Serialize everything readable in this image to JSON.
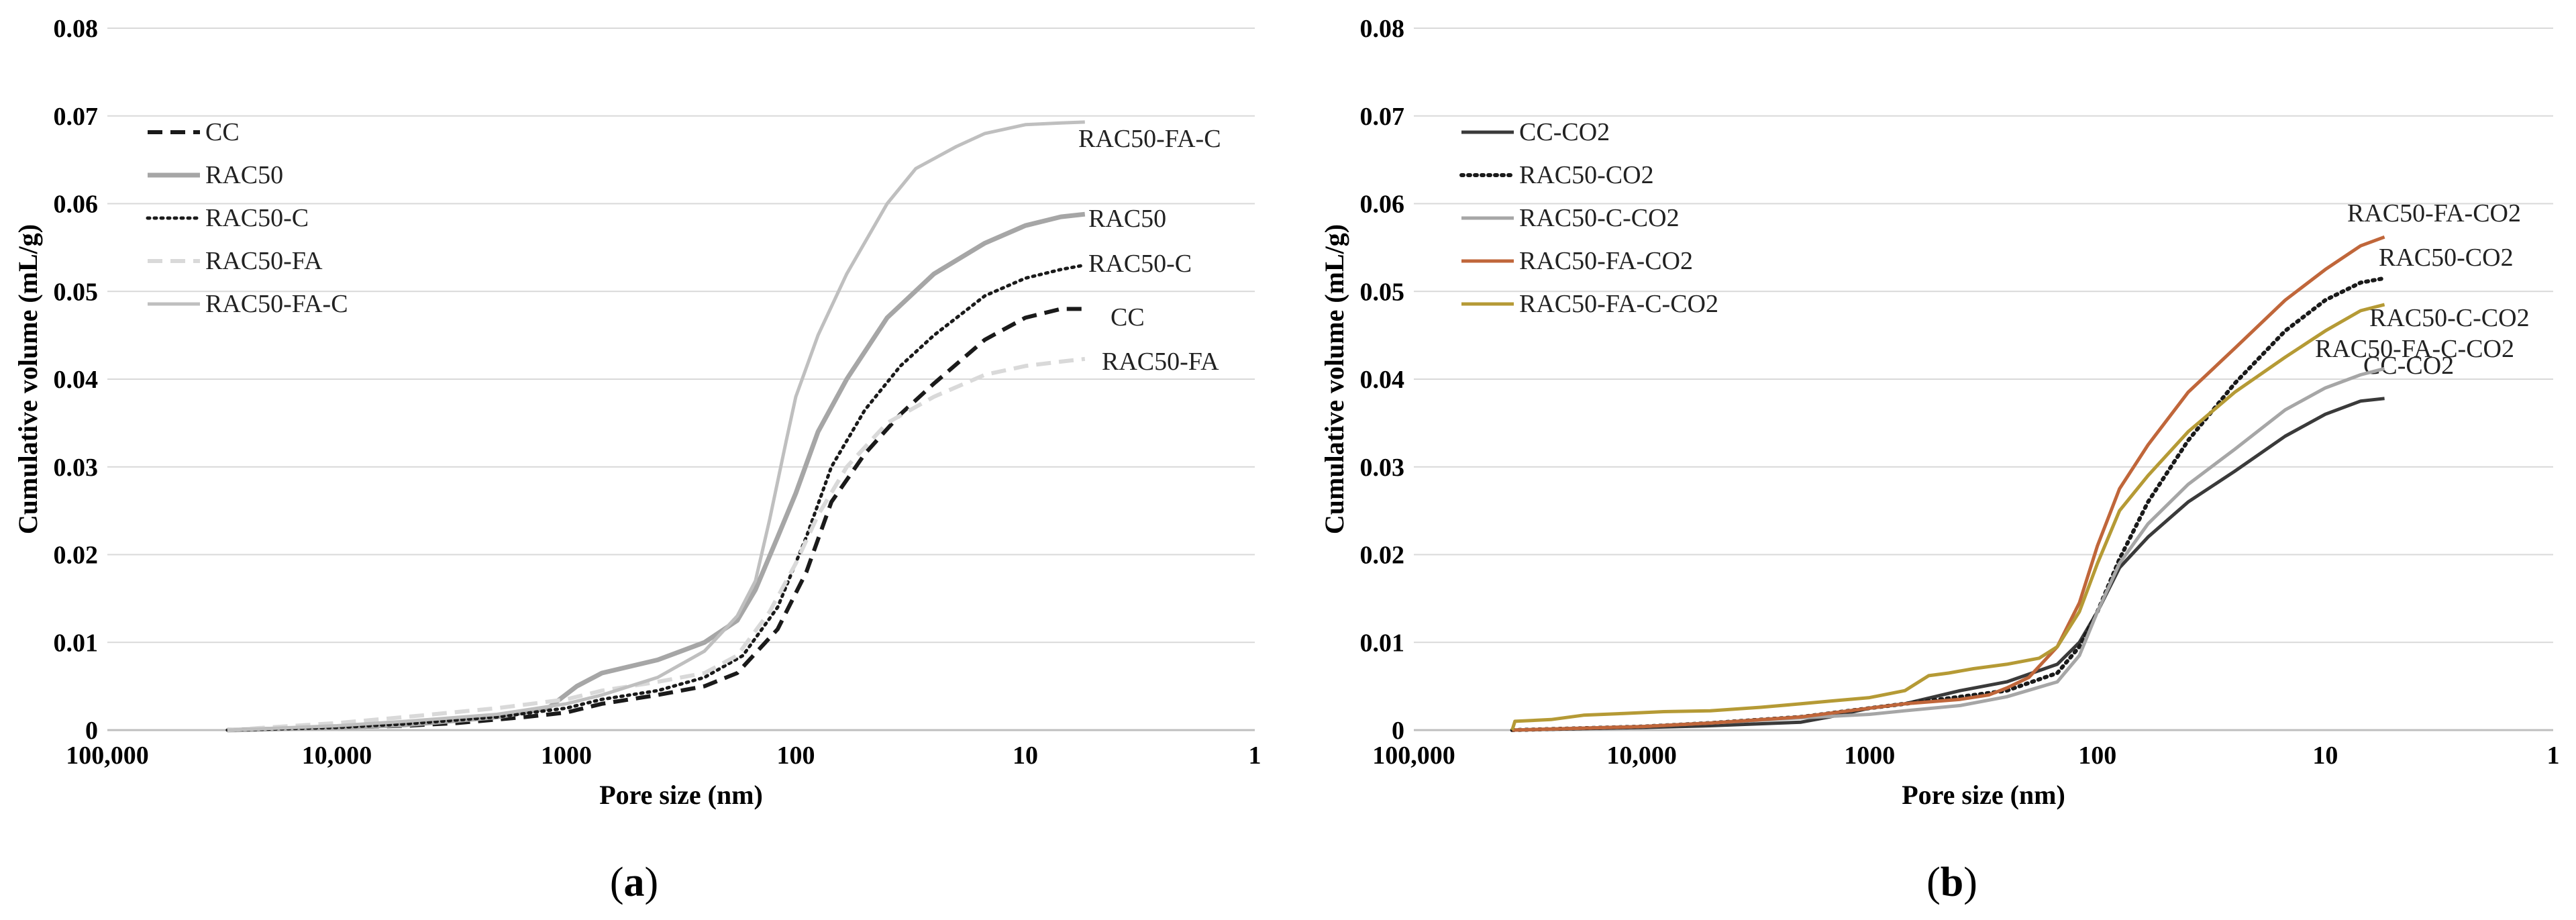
{
  "chart_data": [
    {
      "type": "line",
      "panel": "a",
      "caption": {
        "open": "(",
        "letter": "a",
        "close": ")"
      },
      "xlabel": "Pore size (nm)",
      "ylabel": "Cumulative volume (mL/g)",
      "x_scale": "log",
      "x_reversed": true,
      "xlim": [
        100000,
        1
      ],
      "ylim": [
        0,
        0.08
      ],
      "x_ticks": [
        100000,
        10000,
        1000,
        100,
        10,
        1
      ],
      "x_tick_labels": [
        "100,000",
        "10,000",
        "1000",
        "100",
        "10",
        "1"
      ],
      "y_ticks": [
        0,
        0.01,
        0.02,
        0.03,
        0.04,
        0.05,
        0.06,
        0.07,
        0.08
      ],
      "y_tick_labels": [
        "0",
        "0.01",
        "0.02",
        "0.03",
        "0.04",
        "0.05",
        "0.06",
        "0.07",
        "0.08"
      ],
      "legend_position": "top-left",
      "series": [
        {
          "name": "CC",
          "end_label": "CC",
          "color": "#1a1a1a",
          "dash": "dashed",
          "width": 6,
          "x": [
            30000,
            10000,
            5000,
            3000,
            1500,
            1000,
            700,
            400,
            250,
            180,
            120,
            90,
            70,
            50,
            35,
            25,
            15,
            10,
            7,
            5.5
          ],
          "y": [
            0,
            0.0003,
            0.0005,
            0.0008,
            0.0015,
            0.002,
            0.003,
            0.004,
            0.005,
            0.0065,
            0.0115,
            0.018,
            0.026,
            0.0315,
            0.036,
            0.0395,
            0.0445,
            0.047,
            0.048,
            0.048
          ]
        },
        {
          "name": "RAC50",
          "end_label": "RAC50",
          "color": "#a6a6a6",
          "dash": "solid",
          "width": 7,
          "x": [
            30000,
            10000,
            5000,
            2000,
            1200,
            900,
            700,
            400,
            250,
            180,
            150,
            120,
            100,
            80,
            60,
            40,
            25,
            15,
            10,
            7,
            5.5
          ],
          "y": [
            0,
            0.0003,
            0.0006,
            0.0015,
            0.0025,
            0.005,
            0.0065,
            0.008,
            0.01,
            0.0125,
            0.016,
            0.022,
            0.027,
            0.034,
            0.04,
            0.047,
            0.052,
            0.0555,
            0.0575,
            0.0585,
            0.0588
          ]
        },
        {
          "name": "RAC50-C",
          "end_label": "RAC50-C",
          "color": "#1a1a1a",
          "dash": "dotted",
          "width": 5,
          "x": [
            30000,
            10000,
            5000,
            2000,
            1000,
            700,
            400,
            250,
            170,
            120,
            90,
            70,
            50,
            35,
            25,
            15,
            10,
            7,
            5.5
          ],
          "y": [
            0,
            0.0003,
            0.0007,
            0.0015,
            0.0025,
            0.0035,
            0.0045,
            0.006,
            0.0085,
            0.014,
            0.022,
            0.03,
            0.0365,
            0.0415,
            0.045,
            0.0495,
            0.0515,
            0.0525,
            0.053
          ]
        },
        {
          "name": "RAC50-FA",
          "end_label": "RAC50-FA",
          "color": "#d9d9d9",
          "dash": "dashed",
          "width": 6,
          "x": [
            30000,
            10000,
            5000,
            2000,
            1000,
            700,
            400,
            250,
            180,
            130,
            100,
            80,
            60,
            40,
            25,
            15,
            10,
            7,
            5.5
          ],
          "y": [
            0,
            0.0008,
            0.0015,
            0.0025,
            0.0035,
            0.0045,
            0.0055,
            0.0065,
            0.0085,
            0.0135,
            0.019,
            0.0245,
            0.03,
            0.035,
            0.038,
            0.0405,
            0.0415,
            0.042,
            0.0423
          ]
        },
        {
          "name": "RAC50-FA-C",
          "end_label": "RAC50-FA-C",
          "color": "#bfbfbf",
          "dash": "solid",
          "width": 5,
          "x": [
            30000,
            10000,
            5000,
            2000,
            1000,
            700,
            400,
            250,
            180,
            150,
            130,
            110,
            100,
            80,
            60,
            40,
            30,
            20,
            15,
            10,
            7,
            5.5
          ],
          "y": [
            0,
            0.0005,
            0.001,
            0.0018,
            0.003,
            0.004,
            0.006,
            0.009,
            0.013,
            0.017,
            0.024,
            0.033,
            0.038,
            0.045,
            0.052,
            0.06,
            0.064,
            0.0665,
            0.068,
            0.069,
            0.0692,
            0.0693
          ]
        }
      ]
    },
    {
      "type": "line",
      "panel": "b",
      "caption": {
        "open": "(",
        "letter": "b",
        "close": ")"
      },
      "xlabel": "Pore size (nm)",
      "ylabel": "Cumulative volume (mL/g)",
      "x_scale": "log",
      "x_reversed": true,
      "xlim": [
        100000,
        1
      ],
      "ylim": [
        0,
        0.08
      ],
      "x_ticks": [
        100000,
        10000,
        1000,
        100,
        10,
        1
      ],
      "x_tick_labels": [
        "100,000",
        "10,000",
        "1000",
        "100",
        "10",
        "1"
      ],
      "y_ticks": [
        0,
        0.01,
        0.02,
        0.03,
        0.04,
        0.05,
        0.06,
        0.07,
        0.08
      ],
      "y_tick_labels": [
        "0",
        "0.01",
        "0.02",
        "0.03",
        "0.04",
        "0.05",
        "0.06",
        "0.07",
        "0.08"
      ],
      "legend_position": "top-left",
      "series": [
        {
          "name": "CC-CO2",
          "end_label": "CC-CO2",
          "color": "#3a3a3a",
          "dash": "solid",
          "width": 5,
          "x": [
            37000,
            10000,
            5000,
            2000,
            1500,
            1000,
            700,
            400,
            250,
            150,
            120,
            100,
            80,
            60,
            40,
            25,
            15,
            10,
            7,
            5.5
          ],
          "y": [
            0,
            0.0003,
            0.0005,
            0.0009,
            0.0015,
            0.0025,
            0.003,
            0.0045,
            0.0055,
            0.0075,
            0.01,
            0.0135,
            0.0185,
            0.022,
            0.026,
            0.0295,
            0.0335,
            0.036,
            0.0375,
            0.0378
          ]
        },
        {
          "name": "RAC50-CO2",
          "end_label": "RAC50-CO2",
          "color": "#1a1a1a",
          "dash": "dotted",
          "width": 6,
          "x": [
            37000,
            10000,
            5000,
            2000,
            1000,
            700,
            400,
            250,
            150,
            120,
            100,
            80,
            60,
            40,
            25,
            15,
            10,
            7,
            5.5
          ],
          "y": [
            0,
            0.0004,
            0.0008,
            0.0015,
            0.0025,
            0.003,
            0.0038,
            0.0045,
            0.0065,
            0.0095,
            0.0135,
            0.0195,
            0.026,
            0.033,
            0.0395,
            0.0455,
            0.049,
            0.051,
            0.0515
          ]
        },
        {
          "name": "RAC50-C-CO2",
          "end_label": "RAC50-C-CO2",
          "color": "#a6a6a6",
          "dash": "solid",
          "width": 5,
          "x": [
            37000,
            10000,
            5000,
            2000,
            1000,
            700,
            400,
            250,
            150,
            120,
            100,
            80,
            60,
            40,
            25,
            15,
            10,
            7,
            5.5
          ],
          "y": [
            0,
            0.0004,
            0.0008,
            0.0014,
            0.0018,
            0.0022,
            0.0028,
            0.0038,
            0.0055,
            0.0085,
            0.0135,
            0.019,
            0.0235,
            0.028,
            0.032,
            0.0365,
            0.039,
            0.0405,
            0.0412
          ]
        },
        {
          "name": "RAC50-FA-CO2",
          "end_label": "RAC50-FA-CO2",
          "color": "#c0663a",
          "dash": "solid",
          "width": 5,
          "x": [
            37000,
            10000,
            5000,
            2000,
            1000,
            700,
            400,
            300,
            250,
            200,
            150,
            120,
            100,
            80,
            60,
            40,
            25,
            15,
            10,
            7,
            5.5
          ],
          "y": [
            0,
            0.0004,
            0.0008,
            0.0015,
            0.0025,
            0.003,
            0.0035,
            0.004,
            0.0048,
            0.006,
            0.0095,
            0.0145,
            0.021,
            0.0275,
            0.0325,
            0.0385,
            0.0435,
            0.049,
            0.0525,
            0.0552,
            0.0562
          ]
        },
        {
          "name": "RAC50-FA-C-CO2",
          "end_label": "RAC50-FA-C-CO2",
          "color": "#b59a35",
          "dash": "solid",
          "width": 5,
          "x": [
            37000,
            36000,
            25000,
            18000,
            12000,
            8000,
            5000,
            3000,
            2000,
            1500,
            1000,
            700,
            550,
            450,
            350,
            250,
            180,
            150,
            120,
            100,
            80,
            60,
            40,
            25,
            15,
            10,
            7,
            5.5
          ],
          "y": [
            0,
            0.001,
            0.0012,
            0.0017,
            0.0019,
            0.0021,
            0.0022,
            0.0026,
            0.003,
            0.0033,
            0.0037,
            0.0045,
            0.0062,
            0.0065,
            0.007,
            0.0075,
            0.0082,
            0.0095,
            0.0135,
            0.019,
            0.025,
            0.029,
            0.034,
            0.0385,
            0.0425,
            0.0455,
            0.0478,
            0.0485
          ]
        }
      ]
    }
  ]
}
